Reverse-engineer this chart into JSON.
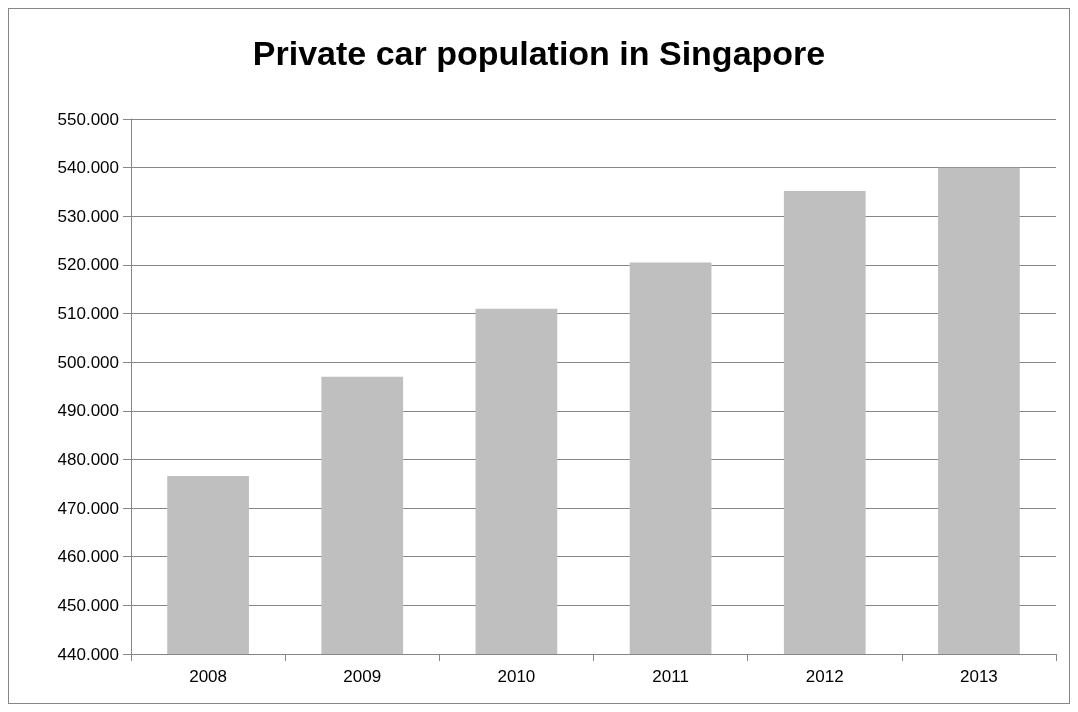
{
  "chart_data": {
    "type": "bar",
    "title": "Private car population in Singapore",
    "categories": [
      "2008",
      "2009",
      "2010",
      "2011",
      "2012",
      "2013"
    ],
    "values": [
      476600,
      497000,
      511000,
      520500,
      535200,
      540000
    ],
    "color": "#bfbfbf",
    "ylim": [
      440000,
      550000
    ],
    "yticks": [
      {
        "value": 440000,
        "label": "440.000"
      },
      {
        "value": 450000,
        "label": "450.000"
      },
      {
        "value": 460000,
        "label": "460.000"
      },
      {
        "value": 470000,
        "label": "470.000"
      },
      {
        "value": 480000,
        "label": "480.000"
      },
      {
        "value": 490000,
        "label": "490.000"
      },
      {
        "value": 500000,
        "label": "500.000"
      },
      {
        "value": 510000,
        "label": "510.000"
      },
      {
        "value": 520000,
        "label": "520.000"
      },
      {
        "value": 530000,
        "label": "530.000"
      },
      {
        "value": 540000,
        "label": "540.000"
      },
      {
        "value": 550000,
        "label": "550.000"
      }
    ],
    "grid": "y"
  }
}
